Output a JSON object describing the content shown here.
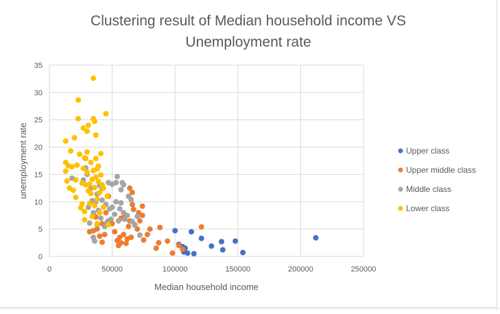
{
  "chart_data": {
    "type": "scatter",
    "title": "Clustering result of Median household income VS Unemployment rate",
    "title_lines": [
      "Clustering result of Median household income VS",
      "Unemployment rate"
    ],
    "xlabel": "Median household income",
    "ylabel": "unemployment rate",
    "xlim": [
      0,
      250000
    ],
    "ylim": [
      0,
      35
    ],
    "x_ticks": [
      "0",
      "50000",
      "100000",
      "150000",
      "200000",
      "250000"
    ],
    "y_ticks": [
      "0",
      "5",
      "10",
      "15",
      "20",
      "25",
      "30",
      "35"
    ],
    "grid": true,
    "legend_position": "right",
    "series": [
      {
        "name": "Upper class",
        "color": "#4472c4",
        "points": [
          [
            100000,
            4.7
          ],
          [
            103000,
            2.2
          ],
          [
            106000,
            1.8
          ],
          [
            107000,
            0.8
          ],
          [
            108000,
            1.5
          ],
          [
            110000,
            0.6
          ],
          [
            113000,
            4.5
          ],
          [
            115000,
            0.5
          ],
          [
            121000,
            3.3
          ],
          [
            129000,
            1.9
          ],
          [
            137000,
            2.7
          ],
          [
            138000,
            1.2
          ],
          [
            148000,
            2.8
          ],
          [
            154000,
            0.7
          ],
          [
            212000,
            3.4
          ]
        ]
      },
      {
        "name": "Upper middle class",
        "color": "#ed7d31",
        "points": [
          [
            32000,
            4.5
          ],
          [
            35000,
            4.7
          ],
          [
            37000,
            7.2
          ],
          [
            38000,
            5.0
          ],
          [
            40000,
            3.7
          ],
          [
            42000,
            2.6
          ],
          [
            42000,
            6.0
          ],
          [
            44000,
            4.0
          ],
          [
            45000,
            8.0
          ],
          [
            47000,
            6.5
          ],
          [
            47000,
            11.0
          ],
          [
            50000,
            6.0
          ],
          [
            52000,
            4.5
          ],
          [
            54000,
            2.9
          ],
          [
            55000,
            2.0
          ],
          [
            56000,
            3.5
          ],
          [
            57000,
            2.5
          ],
          [
            57000,
            7.0
          ],
          [
            59000,
            4.0
          ],
          [
            60000,
            7.6
          ],
          [
            61000,
            2.4
          ],
          [
            62000,
            3.2
          ],
          [
            63000,
            5.5
          ],
          [
            64000,
            12.5
          ],
          [
            64000,
            6.5
          ],
          [
            65000,
            3.5
          ],
          [
            66000,
            9.5
          ],
          [
            66000,
            11.7
          ],
          [
            67000,
            8.6
          ],
          [
            68000,
            5.8
          ],
          [
            70000,
            5.0
          ],
          [
            71000,
            8.0
          ],
          [
            72000,
            6.5
          ],
          [
            74000,
            7.5
          ],
          [
            74000,
            9.2
          ],
          [
            75000,
            3.0
          ],
          [
            78000,
            4.0
          ],
          [
            80000,
            5.0
          ],
          [
            85000,
            1.5
          ],
          [
            87000,
            2.5
          ],
          [
            88000,
            5.3
          ],
          [
            94000,
            2.8
          ],
          [
            98000,
            0.6
          ],
          [
            103000,
            2.0
          ],
          [
            106000,
            1.3
          ],
          [
            121000,
            5.4
          ]
        ]
      },
      {
        "name": "Middle class",
        "color": "#a5a5a5",
        "points": [
          [
            18000,
            14.3
          ],
          [
            27000,
            14.0
          ],
          [
            29000,
            16.2
          ],
          [
            30000,
            15.0
          ],
          [
            31000,
            9.0
          ],
          [
            32000,
            6.1
          ],
          [
            33000,
            12.5
          ],
          [
            34000,
            10.2
          ],
          [
            35000,
            3.5
          ],
          [
            35000,
            8.0
          ],
          [
            36000,
            2.8
          ],
          [
            37000,
            10.0
          ],
          [
            38000,
            5.8
          ],
          [
            38000,
            11.4
          ],
          [
            39000,
            8.4
          ],
          [
            40000,
            13.0
          ],
          [
            41000,
            7.0
          ],
          [
            42000,
            10.3
          ],
          [
            42000,
            12.4
          ],
          [
            44000,
            5.5
          ],
          [
            45000,
            9.5
          ],
          [
            46000,
            6.3
          ],
          [
            47000,
            13.5
          ],
          [
            48000,
            8.7
          ],
          [
            49000,
            6.8
          ],
          [
            50000,
            13.2
          ],
          [
            50000,
            9.0
          ],
          [
            52000,
            7.7
          ],
          [
            53000,
            13.5
          ],
          [
            53000,
            10.0
          ],
          [
            54000,
            14.6
          ],
          [
            55000,
            6.5
          ],
          [
            56000,
            8.7
          ],
          [
            57000,
            12.2
          ],
          [
            57000,
            9.8
          ],
          [
            58000,
            13.5
          ],
          [
            59000,
            13.1
          ],
          [
            59000,
            8.0
          ],
          [
            60000,
            6.8
          ],
          [
            62000,
            7.5
          ],
          [
            63000,
            11.0
          ],
          [
            65000,
            10.4
          ],
          [
            66000,
            6.4
          ],
          [
            68000,
            5.7
          ],
          [
            70000,
            7.3
          ],
          [
            72000,
            3.9
          ]
        ]
      },
      {
        "name": "Lower class",
        "color": "#ffc000",
        "points": [
          [
            13000,
            21.1
          ],
          [
            13000,
            17.2
          ],
          [
            13000,
            15.6
          ],
          [
            14000,
            13.8
          ],
          [
            15000,
            16.6
          ],
          [
            16000,
            12.5
          ],
          [
            17000,
            19.3
          ],
          [
            18000,
            16.4
          ],
          [
            19000,
            12.1
          ],
          [
            20000,
            21.7
          ],
          [
            21000,
            14.0
          ],
          [
            21000,
            10.8
          ],
          [
            22000,
            16.7
          ],
          [
            23000,
            28.6
          ],
          [
            23000,
            25.2
          ],
          [
            24000,
            18.7
          ],
          [
            25000,
            8.9
          ],
          [
            26000,
            9.6
          ],
          [
            26000,
            13.4
          ],
          [
            27000,
            16.1
          ],
          [
            27000,
            23.5
          ],
          [
            28000,
            18.0
          ],
          [
            28000,
            8.2
          ],
          [
            28000,
            6.7
          ],
          [
            29000,
            13.1
          ],
          [
            29000,
            17.9
          ],
          [
            30000,
            22.9
          ],
          [
            30000,
            19.1
          ],
          [
            30000,
            15.4
          ],
          [
            31000,
            24.0
          ],
          [
            31000,
            12.0
          ],
          [
            32000,
            9.7
          ],
          [
            32000,
            13.2
          ],
          [
            33000,
            17.2
          ],
          [
            33000,
            11.5
          ],
          [
            34000,
            14.1
          ],
          [
            34000,
            7.3
          ],
          [
            35000,
            32.6
          ],
          [
            35000,
            25.2
          ],
          [
            35000,
            15.7
          ],
          [
            36000,
            24.7
          ],
          [
            36000,
            12.6
          ],
          [
            36000,
            9.3
          ],
          [
            37000,
            22.2
          ],
          [
            37000,
            17.9
          ],
          [
            37000,
            14.5
          ],
          [
            38000,
            16.0
          ],
          [
            38000,
            10.5
          ],
          [
            38000,
            6.0
          ],
          [
            39000,
            13.7
          ],
          [
            39000,
            16.5
          ],
          [
            40000,
            11.7
          ],
          [
            40000,
            8.0
          ],
          [
            41000,
            18.8
          ],
          [
            41000,
            14.9
          ],
          [
            42000,
            13.1
          ],
          [
            43000,
            12.5
          ],
          [
            43000,
            9.0
          ],
          [
            45000,
            26.1
          ],
          [
            46000,
            11.0
          ],
          [
            47000,
            5.8
          ]
        ]
      }
    ]
  }
}
